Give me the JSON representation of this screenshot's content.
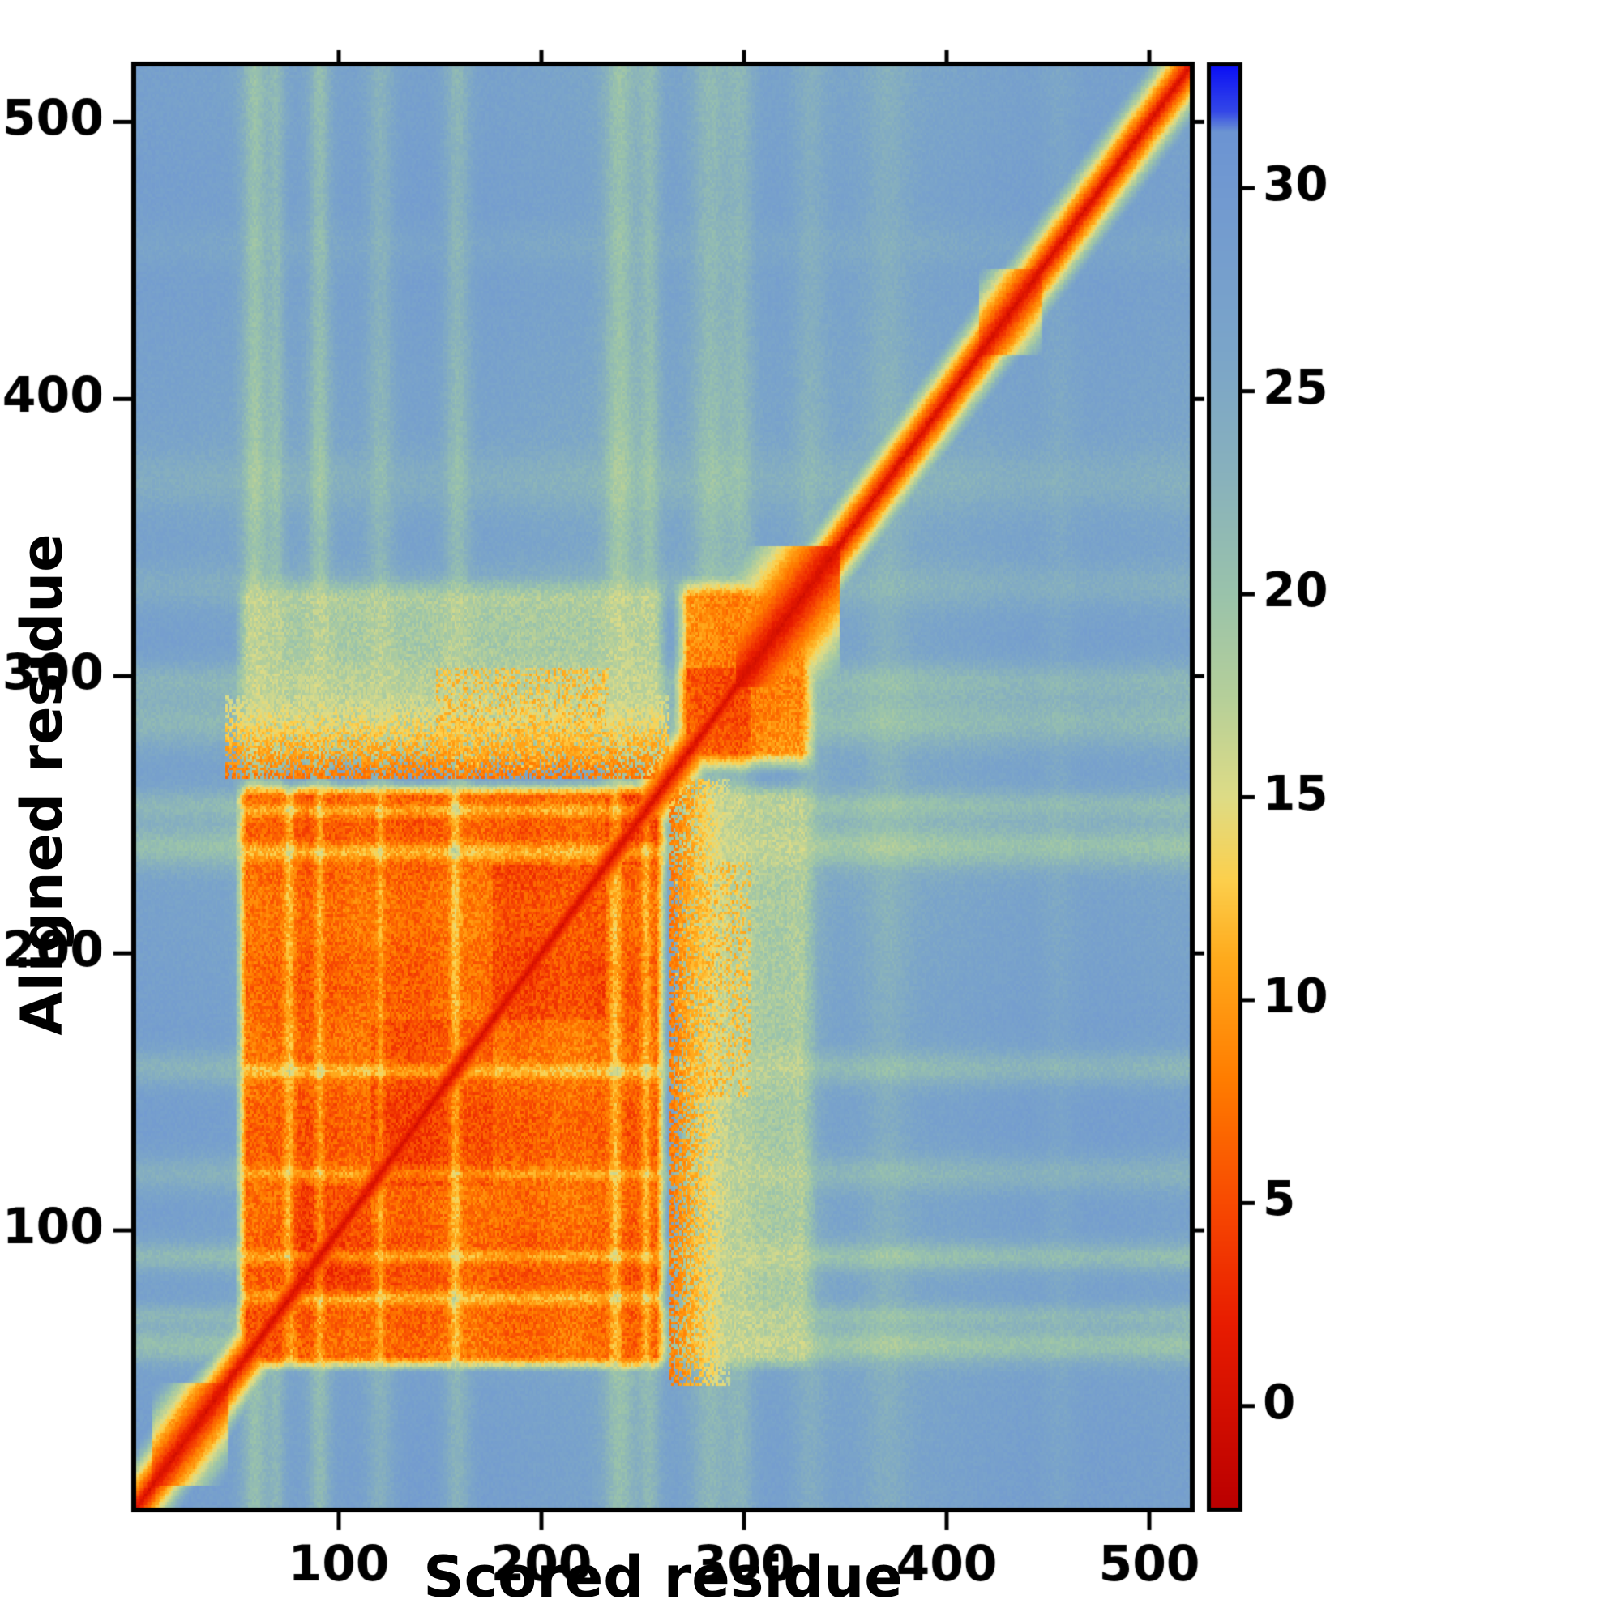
{
  "figure": {
    "background": "#ffffff",
    "frame_color": "#000000"
  },
  "chart_data": {
    "type": "heatmap",
    "title": "",
    "xlabel": "Scored residue",
    "ylabel": "Aligned residue",
    "x_range": [
      0,
      520
    ],
    "y_range": [
      0,
      520
    ],
    "x_ticks": [
      100,
      200,
      300,
      400,
      500
    ],
    "y_ticks": [
      100,
      200,
      300,
      400,
      500
    ],
    "colorbar": {
      "min": -2.5,
      "max": 33,
      "ticks": [
        0,
        5,
        10,
        15,
        20,
        25,
        30
      ]
    },
    "colormap_stops": [
      [
        -2.5,
        "#bb0000"
      ],
      [
        2,
        "#e81c00"
      ],
      [
        5,
        "#f84a02"
      ],
      [
        8,
        "#ff7c00"
      ],
      [
        11,
        "#ffaa1c"
      ],
      [
        13,
        "#fcd04e"
      ],
      [
        15,
        "#dedc86"
      ],
      [
        17.5,
        "#b5cf9a"
      ],
      [
        20,
        "#9ac3ab"
      ],
      [
        23,
        "#88b1bd"
      ],
      [
        26,
        "#7ba5c9"
      ],
      [
        29.5,
        "#739bd0"
      ],
      [
        31.4,
        "#6c94d3"
      ],
      [
        31.9,
        "#3448e8"
      ],
      [
        33,
        "#0d12f5"
      ]
    ],
    "features": {
      "background_value": 27,
      "diagonal": {
        "base": 0.2,
        "slope": 1.25,
        "widen": [
          {
            "lo": 8,
            "hi": 44,
            "slope": 0.8
          },
          {
            "lo": 296,
            "hi": 346,
            "slope": 0.5
          },
          {
            "lo": 416,
            "hi": 446,
            "slope": 0.85
          }
        ]
      },
      "domain_a": {
        "lo": 48,
        "hi": 262,
        "feather": 6,
        "base": 5.8,
        "sub_bounds": [
          48,
          76,
          116,
          176,
          232,
          262
        ]
      },
      "domain_b": {
        "lo": 264,
        "hi": 336,
        "feather": 8,
        "base": 9,
        "core_lo": 264,
        "core_hi": 302
      },
      "nterm_blob": {
        "lo": 12,
        "hi": 40,
        "max_dd": 14
      },
      "coupling_value": 15.5,
      "speckle": {
        "i_lo": 266,
        "i_hi": 302,
        "j_lo": 148,
        "j_hi": 232,
        "value": 10.5
      },
      "fringe": {
        "lo": 262,
        "hi": 292
      },
      "streaks": [
        {
          "pos": 58,
          "w": 5,
          "amp": 0.75
        },
        {
          "pos": 69,
          "w": 3,
          "amp": 0.5
        },
        {
          "pos": 90,
          "w": 4,
          "amp": 0.65
        },
        {
          "pos": 120,
          "w": 5,
          "amp": 0.5
        },
        {
          "pos": 158,
          "w": 5,
          "amp": 0.6
        },
        {
          "pos": 238,
          "w": 6,
          "amp": 0.7
        },
        {
          "pos": 253,
          "w": 4,
          "amp": 0.55
        },
        {
          "pos": 283,
          "w": 7,
          "amp": 0.6
        },
        {
          "pos": 298,
          "w": 5,
          "amp": 0.5
        },
        {
          "pos": 332,
          "w": 6,
          "amp": 0.35
        },
        {
          "pos": 370,
          "w": 8,
          "amp": 0.3
        },
        {
          "pos": 455,
          "w": 6,
          "amp": 0.2
        }
      ],
      "stripes": [
        {
          "pos": 75,
          "w": 2.0,
          "amp": 5.0
        },
        {
          "pos": 90,
          "w": 1.6,
          "amp": 4.5
        },
        {
          "pos": 120,
          "w": 1.4,
          "amp": 3.5
        },
        {
          "pos": 157,
          "w": 1.8,
          "amp": 5.0
        },
        {
          "pos": 236,
          "w": 2.2,
          "amp": 5.5
        },
        {
          "pos": 251,
          "w": 1.6,
          "amp": 4.5
        }
      ]
    }
  }
}
